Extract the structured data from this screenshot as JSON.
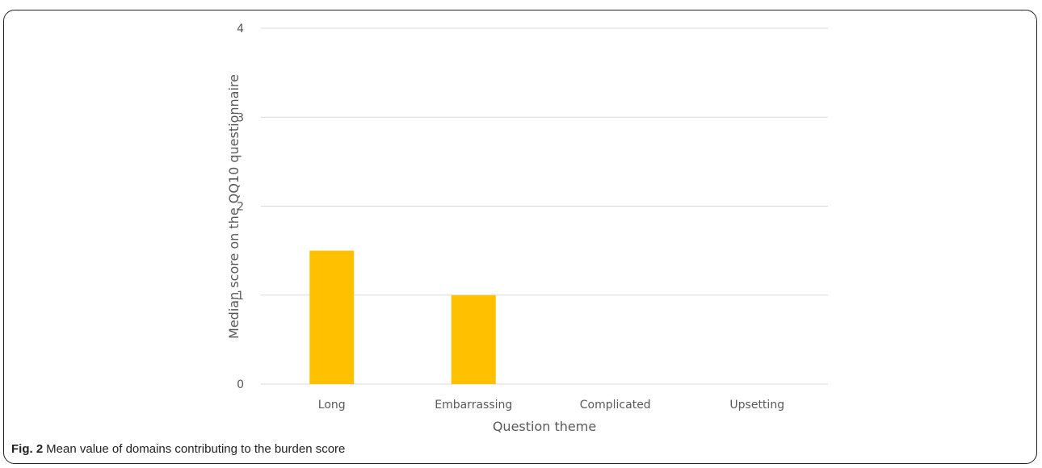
{
  "figure": {
    "label": "Fig. 2",
    "caption": "Mean value of domains contributing to the burden score"
  },
  "chart_data": {
    "type": "bar",
    "categories": [
      "Long",
      "Embarrassing",
      "Complicated",
      "Upsetting"
    ],
    "values": [
      1.5,
      1,
      0,
      0
    ],
    "xlabel": "Question theme",
    "ylabel": "Median score on the QQ10 questionnaire",
    "ylim": [
      0,
      4
    ],
    "yticks": [
      "0",
      "1",
      "2",
      "3",
      "4"
    ],
    "grid": true,
    "legend": "none",
    "bar_color": "#FFC000",
    "grid_color": "#D9D9D9",
    "text_color": "#595959"
  }
}
